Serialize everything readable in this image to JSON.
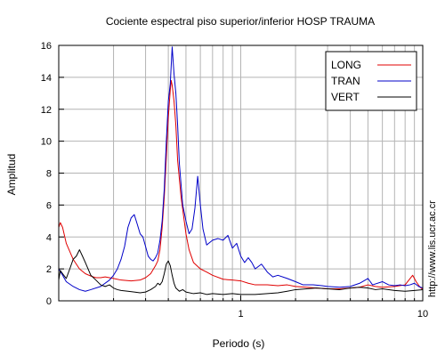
{
  "chart_data": {
    "type": "line",
    "title": "Cociente espectral piso superior/inferior  HOSP TRAUMA",
    "xlabel": "Periodo (s)",
    "ylabel": "Amplitud",
    "xscale": "log",
    "xlim": [
      0.1,
      10
    ],
    "ylim": [
      0,
      16
    ],
    "x_tick_labels": [
      {
        "value": 1,
        "label": "1"
      },
      {
        "value": 10,
        "label": "10"
      }
    ],
    "y_tick_labels": [
      {
        "value": 0,
        "label": "0"
      },
      {
        "value": 2,
        "label": "2"
      },
      {
        "value": 4,
        "label": "4"
      },
      {
        "value": 6,
        "label": "6"
      },
      {
        "value": 8,
        "label": "8"
      },
      {
        "value": 10,
        "label": "10"
      },
      {
        "value": 12,
        "label": "12"
      },
      {
        "value": 14,
        "label": "14"
      },
      {
        "value": 16,
        "label": "16"
      }
    ],
    "grid": true,
    "legend_position": "top-right",
    "series": [
      {
        "name": "LONG",
        "color": "#e00000",
        "points": [
          [
            0.1,
            4.6
          ],
          [
            0.102,
            4.9
          ],
          [
            0.105,
            4.6
          ],
          [
            0.11,
            3.6
          ],
          [
            0.12,
            2.6
          ],
          [
            0.13,
            2.0
          ],
          [
            0.14,
            1.7
          ],
          [
            0.15,
            1.55
          ],
          [
            0.16,
            1.45
          ],
          [
            0.17,
            1.45
          ],
          [
            0.18,
            1.5
          ],
          [
            0.2,
            1.4
          ],
          [
            0.22,
            1.3
          ],
          [
            0.25,
            1.25
          ],
          [
            0.28,
            1.3
          ],
          [
            0.3,
            1.45
          ],
          [
            0.32,
            1.7
          ],
          [
            0.34,
            2.2
          ],
          [
            0.35,
            2.5
          ],
          [
            0.36,
            3.2
          ],
          [
            0.37,
            4.6
          ],
          [
            0.38,
            6.5
          ],
          [
            0.39,
            9.0
          ],
          [
            0.4,
            11.5
          ],
          [
            0.41,
            13.2
          ],
          [
            0.415,
            13.8
          ],
          [
            0.42,
            13.5
          ],
          [
            0.43,
            12.5
          ],
          [
            0.44,
            11.0
          ],
          [
            0.45,
            8.8
          ],
          [
            0.47,
            6.5
          ],
          [
            0.5,
            4.2
          ],
          [
            0.52,
            3.2
          ],
          [
            0.55,
            2.4
          ],
          [
            0.6,
            2.0
          ],
          [
            0.65,
            1.8
          ],
          [
            0.7,
            1.6
          ],
          [
            0.8,
            1.35
          ],
          [
            0.9,
            1.3
          ],
          [
            1.0,
            1.25
          ],
          [
            1.1,
            1.1
          ],
          [
            1.2,
            1.0
          ],
          [
            1.4,
            1.0
          ],
          [
            1.6,
            0.95
          ],
          [
            1.8,
            1.0
          ],
          [
            2.0,
            0.9
          ],
          [
            2.3,
            0.85
          ],
          [
            2.6,
            0.8
          ],
          [
            3.0,
            0.75
          ],
          [
            3.5,
            0.75
          ],
          [
            4.0,
            0.8
          ],
          [
            4.5,
            0.85
          ],
          [
            5.0,
            1.0
          ],
          [
            5.5,
            0.9
          ],
          [
            6.0,
            0.85
          ],
          [
            7.0,
            0.9
          ],
          [
            8.0,
            1.0
          ],
          [
            8.8,
            1.6
          ],
          [
            9.2,
            1.2
          ],
          [
            9.6,
            0.9
          ],
          [
            10.0,
            0.7
          ]
        ]
      },
      {
        "name": "TRAN",
        "color": "#0000c8",
        "points": [
          [
            0.1,
            2.0
          ],
          [
            0.105,
            1.6
          ],
          [
            0.11,
            1.2
          ],
          [
            0.12,
            0.9
          ],
          [
            0.13,
            0.7
          ],
          [
            0.14,
            0.6
          ],
          [
            0.15,
            0.7
          ],
          [
            0.17,
            0.9
          ],
          [
            0.19,
            1.3
          ],
          [
            0.2,
            1.6
          ],
          [
            0.21,
            2.0
          ],
          [
            0.22,
            2.6
          ],
          [
            0.23,
            3.4
          ],
          [
            0.24,
            4.6
          ],
          [
            0.25,
            5.2
          ],
          [
            0.26,
            5.4
          ],
          [
            0.27,
            4.8
          ],
          [
            0.28,
            4.2
          ],
          [
            0.29,
            4.0
          ],
          [
            0.3,
            3.4
          ],
          [
            0.31,
            2.8
          ],
          [
            0.32,
            2.6
          ],
          [
            0.33,
            2.5
          ],
          [
            0.34,
            2.7
          ],
          [
            0.35,
            3.0
          ],
          [
            0.36,
            3.8
          ],
          [
            0.37,
            5.0
          ],
          [
            0.38,
            7.0
          ],
          [
            0.39,
            10.0
          ],
          [
            0.4,
            12.5
          ],
          [
            0.41,
            13.6
          ],
          [
            0.42,
            15.9
          ],
          [
            0.43,
            14.2
          ],
          [
            0.44,
            13.0
          ],
          [
            0.45,
            11.0
          ],
          [
            0.46,
            8.6
          ],
          [
            0.48,
            6.0
          ],
          [
            0.5,
            5.0
          ],
          [
            0.52,
            4.2
          ],
          [
            0.54,
            4.5
          ],
          [
            0.56,
            5.8
          ],
          [
            0.58,
            7.8
          ],
          [
            0.6,
            6.0
          ],
          [
            0.62,
            4.5
          ],
          [
            0.65,
            3.5
          ],
          [
            0.7,
            3.8
          ],
          [
            0.75,
            3.9
          ],
          [
            0.8,
            3.8
          ],
          [
            0.85,
            4.1
          ],
          [
            0.9,
            3.3
          ],
          [
            0.95,
            3.6
          ],
          [
            1.0,
            2.8
          ],
          [
            1.05,
            2.4
          ],
          [
            1.1,
            2.7
          ],
          [
            1.15,
            2.4
          ],
          [
            1.2,
            2.0
          ],
          [
            1.3,
            2.3
          ],
          [
            1.4,
            1.8
          ],
          [
            1.5,
            1.5
          ],
          [
            1.6,
            1.6
          ],
          [
            1.8,
            1.4
          ],
          [
            2.0,
            1.2
          ],
          [
            2.2,
            1.0
          ],
          [
            2.5,
            1.0
          ],
          [
            2.8,
            0.95
          ],
          [
            3.0,
            0.9
          ],
          [
            3.5,
            0.85
          ],
          [
            4.0,
            0.9
          ],
          [
            4.5,
            1.1
          ],
          [
            5.0,
            1.4
          ],
          [
            5.3,
            1.0
          ],
          [
            6.0,
            1.2
          ],
          [
            6.5,
            1.0
          ],
          [
            7.0,
            0.95
          ],
          [
            7.5,
            1.0
          ],
          [
            8.0,
            0.95
          ],
          [
            8.5,
            1.0
          ],
          [
            9.0,
            1.1
          ],
          [
            9.5,
            0.9
          ],
          [
            10.0,
            0.8
          ]
        ]
      },
      {
        "name": "VERT",
        "color": "#000000",
        "points": [
          [
            0.1,
            1.3
          ],
          [
            0.102,
            1.9
          ],
          [
            0.105,
            1.7
          ],
          [
            0.11,
            1.4
          ],
          [
            0.115,
            2.0
          ],
          [
            0.12,
            2.6
          ],
          [
            0.125,
            2.8
          ],
          [
            0.13,
            3.2
          ],
          [
            0.135,
            2.8
          ],
          [
            0.14,
            2.4
          ],
          [
            0.15,
            1.6
          ],
          [
            0.16,
            1.3
          ],
          [
            0.17,
            1.0
          ],
          [
            0.18,
            0.9
          ],
          [
            0.19,
            1.0
          ],
          [
            0.2,
            0.8
          ],
          [
            0.21,
            0.7
          ],
          [
            0.22,
            0.65
          ],
          [
            0.24,
            0.6
          ],
          [
            0.26,
            0.55
          ],
          [
            0.28,
            0.5
          ],
          [
            0.3,
            0.55
          ],
          [
            0.32,
            0.7
          ],
          [
            0.34,
            0.9
          ],
          [
            0.35,
            1.1
          ],
          [
            0.36,
            1.0
          ],
          [
            0.37,
            1.2
          ],
          [
            0.38,
            1.7
          ],
          [
            0.39,
            2.3
          ],
          [
            0.4,
            2.5
          ],
          [
            0.41,
            2.2
          ],
          [
            0.42,
            1.6
          ],
          [
            0.43,
            1.1
          ],
          [
            0.44,
            0.8
          ],
          [
            0.46,
            0.6
          ],
          [
            0.48,
            0.7
          ],
          [
            0.5,
            0.55
          ],
          [
            0.55,
            0.45
          ],
          [
            0.6,
            0.5
          ],
          [
            0.65,
            0.4
          ],
          [
            0.7,
            0.45
          ],
          [
            0.8,
            0.4
          ],
          [
            0.9,
            0.45
          ],
          [
            1.0,
            0.4
          ],
          [
            1.2,
            0.4
          ],
          [
            1.4,
            0.45
          ],
          [
            1.6,
            0.5
          ],
          [
            1.8,
            0.6
          ],
          [
            2.0,
            0.7
          ],
          [
            2.3,
            0.75
          ],
          [
            2.6,
            0.8
          ],
          [
            3.0,
            0.75
          ],
          [
            3.5,
            0.7
          ],
          [
            4.0,
            0.8
          ],
          [
            4.5,
            0.85
          ],
          [
            5.0,
            0.8
          ],
          [
            5.5,
            0.7
          ],
          [
            6.0,
            0.75
          ],
          [
            7.0,
            0.65
          ],
          [
            8.0,
            0.6
          ],
          [
            9.0,
            0.65
          ],
          [
            10.0,
            0.7
          ]
        ]
      }
    ]
  },
  "credit": "http://www.lis.ucr.ac.cr"
}
